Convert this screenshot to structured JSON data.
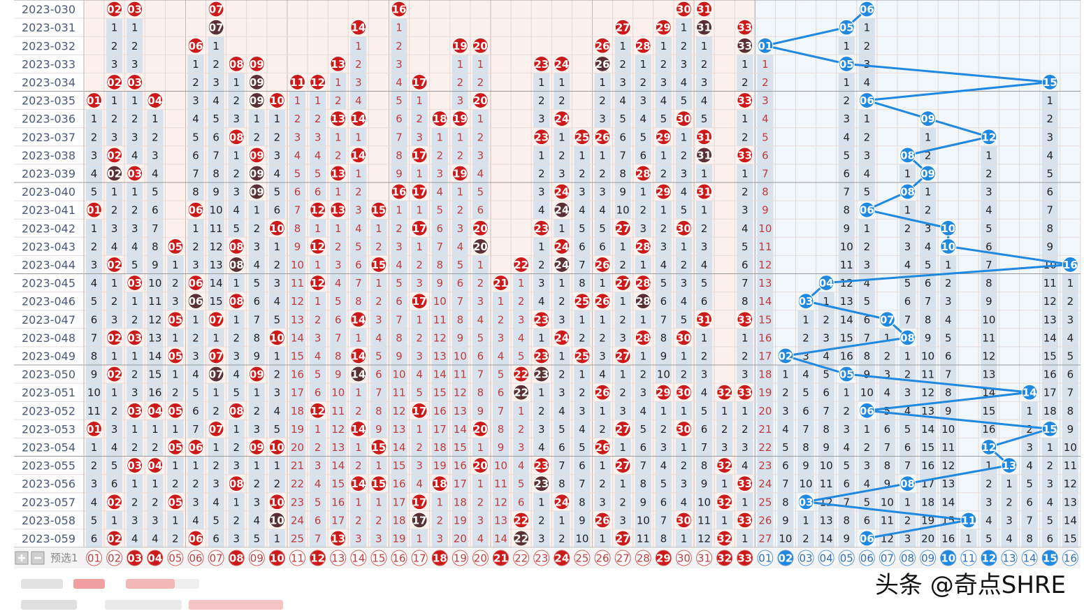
{
  "chart_data": {
    "type": "table",
    "issues": [
      "2023-030",
      "2023-031",
      "2023-032",
      "2023-033",
      "2023-034",
      "2023-035",
      "2023-036",
      "2023-037",
      "2023-038",
      "2023-039",
      "2023-040",
      "2023-041",
      "2023-042",
      "2023-043",
      "2023-044",
      "2023-045",
      "2023-046",
      "2023-047",
      "2023-048",
      "2023-049",
      "2023-050",
      "2023-051",
      "2023-052",
      "2023-053",
      "2023-054",
      "2023-055",
      "2023-056",
      "2023-057",
      "2023-058",
      "2023-059"
    ],
    "red_numbers": [
      "01",
      "02",
      "03",
      "04",
      "05",
      "06",
      "07",
      "08",
      "09",
      "10",
      "11",
      "12",
      "13",
      "14",
      "15",
      "16",
      "17",
      "18",
      "19",
      "20",
      "21",
      "22",
      "23",
      "24",
      "25",
      "26",
      "27",
      "28",
      "29",
      "30",
      "31",
      "32",
      "33"
    ],
    "blue_numbers": [
      "01",
      "02",
      "03",
      "04",
      "05",
      "06",
      "07",
      "08",
      "09",
      "10",
      "11",
      "12",
      "13",
      "14",
      "15",
      "16"
    ],
    "red_draws": [
      [
        2,
        3,
        7,
        16,
        30,
        31
      ],
      [
        7,
        14,
        27,
        29,
        31,
        33
      ],
      [
        6,
        19,
        20,
        26,
        28,
        33
      ],
      [
        8,
        9,
        13,
        23,
        24,
        26
      ],
      [
        2,
        3,
        9,
        11,
        12,
        17
      ],
      [
        1,
        4,
        9,
        10,
        20,
        33
      ],
      [
        13,
        14,
        18,
        19,
        24,
        30
      ],
      [
        8,
        23,
        25,
        26,
        29,
        31
      ],
      [
        2,
        9,
        14,
        17,
        31,
        33
      ],
      [
        2,
        3,
        9,
        13,
        19,
        28
      ],
      [
        9,
        16,
        17,
        24,
        29,
        31
      ],
      [
        1,
        6,
        12,
        13,
        15,
        24
      ],
      [
        10,
        17,
        20,
        23,
        27,
        30
      ],
      [
        5,
        8,
        12,
        20,
        24,
        28
      ],
      [
        2,
        8,
        15,
        22,
        24,
        26
      ],
      [
        3,
        6,
        12,
        21,
        27,
        28
      ],
      [
        6,
        8,
        17,
        25,
        26,
        28
      ],
      [
        5,
        7,
        14,
        23,
        31,
        33
      ],
      [
        2,
        3,
        10,
        24,
        28,
        30
      ],
      [
        5,
        7,
        14,
        23,
        25,
        27
      ],
      [
        2,
        7,
        9,
        14,
        22,
        23
      ],
      [
        22,
        26,
        29,
        30,
        32,
        33
      ],
      [
        3,
        4,
        5,
        8,
        12,
        17
      ],
      [
        1,
        7,
        14,
        20,
        27,
        30
      ],
      [
        5,
        6,
        9,
        10,
        15,
        26
      ],
      [
        3,
        4,
        20,
        23,
        27,
        32
      ],
      [
        8,
        14,
        15,
        18,
        23,
        33
      ],
      [
        2,
        5,
        10,
        17,
        24,
        32
      ],
      [
        10,
        17,
        22,
        26,
        30,
        33
      ],
      [
        2,
        6,
        13,
        22,
        27,
        32
      ]
    ],
    "blue_draws": [
      6,
      5,
      1,
      5,
      15,
      6,
      9,
      12,
      8,
      9,
      8,
      6,
      10,
      10,
      16,
      4,
      3,
      7,
      8,
      2,
      5,
      14,
      6,
      15,
      12,
      13,
      8,
      3,
      11,
      6
    ],
    "footer_label": "预选1",
    "watermark": "头条 @奇点SHRE",
    "colors": {
      "red_ball": "#cc1a1a",
      "dark_ball": "#5a3030",
      "blue_ball": "#1f88e0",
      "red_zone_bg": "#fdf1ee",
      "blue_zone_bg": "#f2f7fc",
      "miss_bar": "#d8e2ec"
    }
  }
}
